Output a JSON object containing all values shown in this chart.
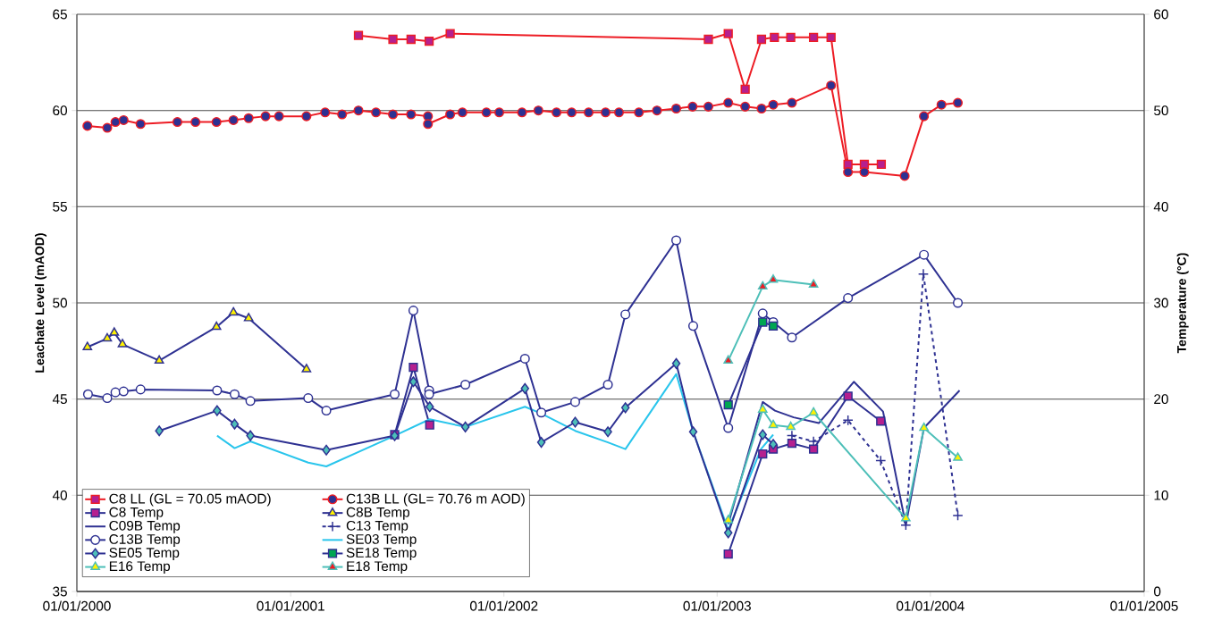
{
  "chart_data": {
    "type": "line",
    "xlabel": null,
    "ylabel": "Leachate Level (mAOD)",
    "y2label": "Temperature (°C)",
    "xlim": [
      "2000-01-01",
      "2005-01-01"
    ],
    "xticks": [
      {
        "value": "2000-01-01",
        "label": "01/01/2000"
      },
      {
        "value": "2001-01-01",
        "label": "01/01/2001"
      },
      {
        "value": "2002-01-01",
        "label": "01/01/2002"
      },
      {
        "value": "2003-01-01",
        "label": "01/01/2003"
      },
      {
        "value": "2004-01-01",
        "label": "01/01/2004"
      },
      {
        "value": "2005-01-01",
        "label": "01/01/2005"
      }
    ],
    "ylim": [
      35,
      65
    ],
    "yticks": [
      35,
      40,
      45,
      50,
      55,
      60,
      65
    ],
    "y2lim": [
      0,
      60
    ],
    "y2ticks": [
      0,
      10,
      20,
      30,
      40,
      50,
      60
    ],
    "grid": "y",
    "legend": "bottom left",
    "series": [
      {
        "name": "C8 LL (GL = 70.05 mAOD)",
        "color": "#ed1c24",
        "marker": "square",
        "line_style": "solid",
        "x": [
          "2001-04-27",
          "2001-06-25",
          "2001-07-26",
          "2001-08-26",
          "2001-10-01",
          "2002-12-17",
          "2003-01-20",
          "2003-02-18",
          "2003-03-18",
          "2003-04-09",
          "2003-05-07",
          "2003-06-15",
          "2003-07-15",
          "2003-08-13",
          "2003-09-10",
          "2003-10-09"
        ],
        "values": [
          63.9,
          63.7,
          63.7,
          63.6,
          64.0,
          63.7,
          64.0,
          61.1,
          63.7,
          63.8,
          63.8,
          63.8,
          63.8,
          57.2,
          57.2,
          57.2
        ],
        "colors": [
          "#b5208f",
          "#b5208f",
          "#b5208f",
          "#b5208f",
          "#b5208f",
          "#b5208f",
          "#b5208f",
          "#b5208f",
          "#b5208f",
          "#b5208f",
          "#b5208f",
          "#b5208f",
          "#b5208f",
          "#b5208f",
          "#b5208f",
          "#b5208f"
        ]
      },
      {
        "name": "C13B LL (GL= 70.76 m AOD)",
        "color": "#ed1c24",
        "marker": "circle",
        "line_style": "solid",
        "x": [
          "2000-01-19",
          "2000-02-22",
          "2000-03-07",
          "2000-03-21",
          "2000-04-19",
          "2000-06-21",
          "2000-07-22",
          "2000-08-27",
          "2000-09-25",
          "2000-10-21",
          "2000-11-19",
          "2000-12-12",
          "2001-01-28",
          "2001-03-01",
          "2001-03-30",
          "2001-04-27",
          "2001-05-27",
          "2001-06-25",
          "2001-07-26",
          "2001-08-24",
          "2001-08-24",
          "2001-10-01",
          "2001-10-22",
          "2001-12-02",
          "2001-12-24",
          "2002-02-01",
          "2002-03-01",
          "2002-04-01",
          "2002-04-27",
          "2002-05-26",
          "2002-06-24",
          "2002-07-17",
          "2002-08-20",
          "2002-09-20",
          "2002-10-23",
          "2002-11-20",
          "2002-12-17",
          "2003-01-20",
          "2003-02-18",
          "2003-03-18",
          "2003-04-07",
          "2003-05-09",
          "2003-07-15",
          "2003-08-13",
          "2003-09-10",
          "2003-11-18",
          "2003-12-21",
          "2004-01-20",
          "2004-02-17"
        ],
        "values": [
          59.2,
          59.1,
          59.4,
          59.5,
          59.3,
          59.4,
          59.4,
          59.4,
          59.5,
          59.6,
          59.7,
          59.7,
          59.7,
          59.9,
          59.8,
          60.0,
          59.9,
          59.8,
          59.8,
          59.7,
          59.3,
          59.8,
          59.9,
          59.9,
          59.9,
          59.9,
          60.0,
          59.9,
          59.9,
          59.9,
          59.9,
          59.9,
          59.9,
          60.0,
          60.1,
          60.2,
          60.2,
          60.4,
          60.2,
          60.1,
          60.3,
          60.4,
          61.3,
          56.8,
          56.8,
          56.6,
          59.7,
          60.3,
          60.4
        ],
        "colors": [
          "#2e3192",
          "#2e3192",
          "#2e3192",
          "#2e3192",
          "#2e3192",
          "#2e3192",
          "#2e3192",
          "#2e3192",
          "#2e3192",
          "#2e3192",
          "#2e3192",
          "#2e3192",
          "#2e3192",
          "#2e3192",
          "#2e3192",
          "#2e3192",
          "#2e3192",
          "#2e3192",
          "#2e3192",
          "#2e3192",
          "#2e3192",
          "#2e3192",
          "#2e3192",
          "#2e3192",
          "#2e3192",
          "#2e3192",
          "#2e3192",
          "#2e3192",
          "#2e3192",
          "#2e3192",
          "#2e3192",
          "#2e3192",
          "#2e3192",
          "#2e3192",
          "#2e3192",
          "#2e3192",
          "#2e3192",
          "#2e3192",
          "#2e3192",
          "#2e3192",
          "#2e3192",
          "#2e3192",
          "#2e3192",
          "#2e3192",
          "#2e3192",
          "#2e3192",
          "#2e3192",
          "#2e3192",
          "#2e3192"
        ]
      },
      {
        "name": "C8 Temp",
        "color": "#2e3192",
        "marker": "square",
        "line_style": "solid",
        "axis": "y2",
        "x": [
          "2001-06-28",
          "2001-07-30",
          "2001-08-27",
          "2002-06-01",
          "2003-01-20",
          "2003-03-20",
          "2003-04-07",
          "2003-05-09",
          "2003-06-15",
          "2003-08-13",
          "2003-10-08"
        ],
        "values": [
          16.3,
          23.3,
          17.3,
          null,
          3.9,
          14.3,
          14.8,
          15.4,
          14.8,
          20.3,
          17.7
        ],
        "colors": [
          "#b5208f",
          "#b5208f",
          "#b5208f",
          null,
          "#b5208f",
          "#b5208f",
          "#b5208f",
          "#b5208f",
          "#b5208f",
          "#b5208f",
          "#b5208f"
        ]
      },
      {
        "name": "C8B Temp",
        "color": "#2e3192",
        "marker": "triangle",
        "line_style": "solid",
        "axis": "y2",
        "x": [
          "2000-01-19",
          "2000-02-22",
          "2000-03-05",
          "2000-03-19",
          "2000-05-21",
          "2000-08-27",
          "2000-09-25",
          "2000-10-21",
          "2001-01-28"
        ],
        "values": [
          25.4,
          26.3,
          26.9,
          25.7,
          24.0,
          27.5,
          29.0,
          28.4,
          23.1
        ],
        "colors": [
          "#fff200",
          "#fff200",
          "#fff200",
          "#fff200",
          "#fff200",
          "#fff200",
          "#fff200",
          "#fff200",
          "#fff200"
        ]
      },
      {
        "name": "C09B Temp",
        "color": "#2e3192",
        "marker": "none",
        "line_style": "solid",
        "axis": "y2",
        "x": [
          "2003-01-20",
          "2003-03-20",
          "2003-04-10",
          "2003-05-12",
          "2003-06-24",
          "2003-08-23",
          "2003-10-12",
          "2003-11-20",
          "2003-12-21",
          "2004-02-20"
        ],
        "values": [
          7.0,
          19.7,
          18.8,
          18.1,
          17.5,
          21.8,
          18.7,
          6.9,
          17.0,
          20.9
        ]
      },
      {
        "name": "C13 Temp",
        "color": "#2e3192",
        "marker": "cross",
        "line_style": "dashed",
        "axis": "y2",
        "x": [
          "2003-05-09",
          "2003-06-15",
          "2003-08-13",
          "2003-10-08",
          "2003-11-20",
          "2003-12-20",
          "2004-02-17"
        ],
        "values": [
          16.2,
          15.6,
          17.8,
          13.6,
          6.9,
          33.0,
          7.9
        ]
      },
      {
        "name": "C13B Temp",
        "color": "#2e3192",
        "marker": "circle",
        "line_style": "solid",
        "axis": "y2",
        "x": [
          "2000-01-20",
          "2000-02-22",
          "2000-03-07",
          "2000-03-21",
          "2000-04-19",
          "2000-08-28",
          "2000-09-27",
          "2000-10-24",
          "2001-01-31",
          "2001-03-03",
          "2001-06-28",
          "2001-07-30",
          "2001-08-26",
          "2001-08-26",
          "2001-10-27",
          "2002-02-06",
          "2002-03-06",
          "2002-05-03",
          "2002-06-28",
          "2002-07-28",
          "2002-10-23",
          "2002-11-21",
          "2003-01-20",
          "2003-03-20",
          "2003-04-07",
          "2003-05-09",
          "2003-08-13",
          "2003-12-21",
          "2004-02-17"
        ],
        "values": [
          20.5,
          20.1,
          20.7,
          20.8,
          21.0,
          20.9,
          20.5,
          19.8,
          20.1,
          18.8,
          20.5,
          29.2,
          20.9,
          20.5,
          21.5,
          24.2,
          18.6,
          19.7,
          21.5,
          28.8,
          36.5,
          27.6,
          17.0,
          28.9,
          28.0,
          26.4,
          30.5,
          35.0,
          30.0
        ],
        "colors": [
          "#ffffff",
          "#ffffff",
          "#ffffff",
          "#ffffff",
          "#ffffff",
          "#ffffff",
          "#ffffff",
          "#ffffff",
          "#ffffff",
          "#ffffff",
          "#ffffff",
          "#ffffff",
          "#ffffff",
          "#ffffff",
          "#ffffff",
          "#ffffff",
          "#ffffff",
          "#ffffff",
          "#ffffff",
          "#ffffff",
          "#ffffff",
          "#ffffff",
          "#ffffff",
          "#ffffff",
          "#ffffff",
          "#ffffff",
          "#ffffff",
          "#ffffff",
          "#ffffff"
        ]
      },
      {
        "name": "SE03 Temp",
        "color": "#29c5ec",
        "marker": "none",
        "line_style": "solid",
        "axis": "y2",
        "x": [
          "2000-08-28",
          "2000-09-27",
          "2000-10-24",
          "2001-01-31",
          "2001-03-03",
          "2001-06-28",
          "2001-08-27",
          "2001-10-27",
          "2002-02-06",
          "2002-03-06",
          "2002-05-03",
          "2002-06-28",
          "2002-07-28",
          "2002-10-23",
          "2002-11-21",
          "2003-01-20",
          "2003-03-17",
          "2003-04-07"
        ],
        "values": [
          16.2,
          14.9,
          15.6,
          13.4,
          13.0,
          16.2,
          17.9,
          17.1,
          19.2,
          18.5,
          16.7,
          15.5,
          14.8,
          22.6,
          16.6,
          6.4,
          14.8,
          16.3
        ]
      },
      {
        "name": "SE05 Temp",
        "color": "#2e3192",
        "marker": "diamond",
        "line_style": "solid",
        "axis": "y2",
        "x": [
          "2000-05-21",
          "2000-08-28",
          "2000-09-27",
          "2000-10-24",
          "2001-03-03",
          "2001-06-28",
          "2001-07-30",
          "2001-08-27",
          "2001-10-27",
          "2002-02-06",
          "2002-03-06",
          "2002-05-03",
          "2002-06-28",
          "2002-07-28",
          "2002-10-23",
          "2002-11-21",
          "2003-01-20",
          "2003-03-20",
          "2003-04-07"
        ],
        "values": [
          16.7,
          18.8,
          17.4,
          16.2,
          14.7,
          16.2,
          21.8,
          19.2,
          17.1,
          21.1,
          15.5,
          17.6,
          16.6,
          19.1,
          23.7,
          16.6,
          6.1,
          16.3,
          15.3
        ],
        "colors": [
          "#4dbfb8",
          "#4dbfb8",
          "#4dbfb8",
          "#4dbfb8",
          "#4dbfb8",
          "#4dbfb8",
          "#4dbfb8",
          "#4dbfb8",
          "#4dbfb8",
          "#4dbfb8",
          "#4dbfb8",
          "#4dbfb8",
          "#4dbfb8",
          "#4dbfb8",
          "#4dbfb8",
          "#4dbfb8",
          "#4dbfb8",
          "#4dbfb8",
          "#4dbfb8"
        ]
      },
      {
        "name": "SE18 Temp",
        "color": "#2e3192",
        "marker": "square",
        "line_style": "solid",
        "axis": "y2",
        "x": [
          "2003-01-20",
          "2003-03-20",
          "2003-04-07"
        ],
        "values": [
          19.4,
          28.0,
          27.6
        ],
        "colors": [
          "#00a651",
          "#00a651",
          "#00a651"
        ]
      },
      {
        "name": "E16 Temp",
        "color": "#4dbfb8",
        "marker": "triangle",
        "line_style": "solid",
        "axis": "y2",
        "x": [
          "2003-01-20",
          "2003-03-20",
          "2003-04-07",
          "2003-05-07",
          "2003-06-15",
          "2003-11-20",
          "2003-12-21",
          "2004-02-17"
        ],
        "values": [
          7.4,
          18.9,
          17.3,
          17.1,
          18.6,
          7.6,
          17.0,
          13.9
        ],
        "colors": [
          "#fff200",
          "#fff200",
          "#fff200",
          "#fff200",
          "#fff200",
          "#fff200",
          "#fff200",
          "#fff200"
        ]
      },
      {
        "name": "E18 Temp",
        "color": "#4dbfb8",
        "marker": "triangle",
        "line_style": "solid",
        "axis": "y2",
        "x": [
          "2003-01-20",
          "2003-03-20",
          "2003-04-07",
          "2003-06-15"
        ],
        "values": [
          24.0,
          31.7,
          32.4,
          31.9
        ],
        "colors": [
          "#ed1c24",
          "#ed1c24",
          "#ed1c24",
          "#ed1c24"
        ]
      }
    ]
  }
}
